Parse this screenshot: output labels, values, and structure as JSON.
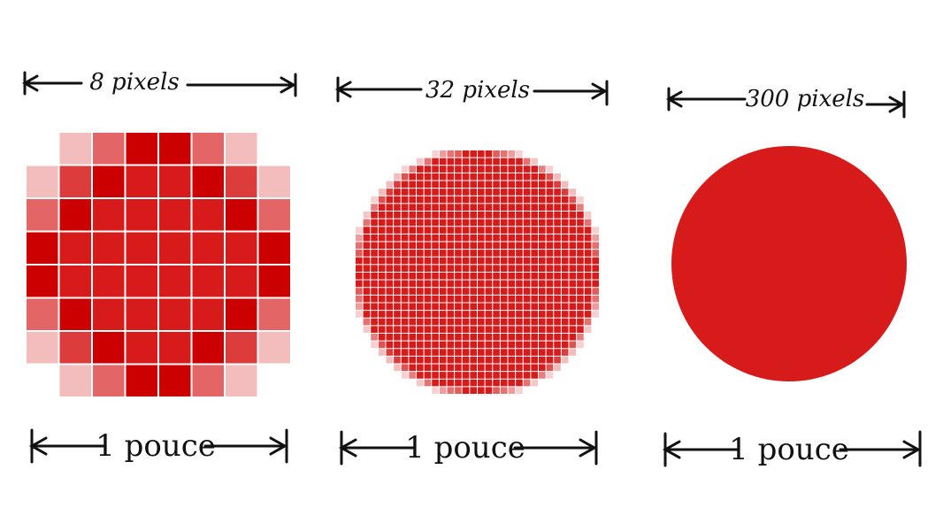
{
  "panels": [
    {
      "id": "panel-8",
      "top_label": "8 pixels",
      "bottom_label": "1 pouce",
      "grid": 8
    },
    {
      "id": "panel-32",
      "top_label": "32 pixels",
      "bottom_label": "1 pouce",
      "grid": 32
    },
    {
      "id": "panel-300",
      "top_label": "300 pixels",
      "bottom_label": "1 pouce",
      "grid": 300
    }
  ],
  "colors": {
    "red": "#d71a1a",
    "ink": "#111111",
    "background": "#ffffff"
  }
}
